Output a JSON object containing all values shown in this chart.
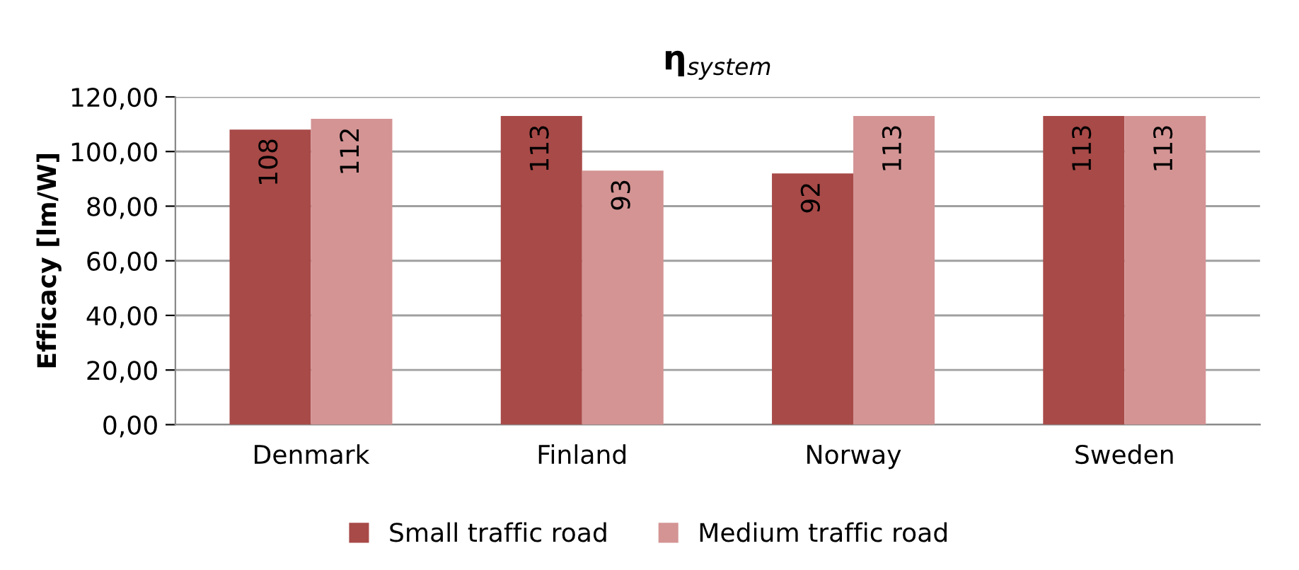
{
  "chart_data": {
    "type": "bar",
    "title": "η$_{system}$",
    "ylabel": "Efficacy [lm/W]",
    "categories": [
      "Denmark",
      "Finland",
      "Norway",
      "Sweden"
    ],
    "series": [
      {
        "name": "Small traffic road",
        "color": "#a84a48",
        "values": [
          108,
          113,
          92,
          113
        ]
      },
      {
        "name": "Medium traffic road",
        "color": "#d49494",
        "values": [
          112,
          93,
          113,
          113
        ]
      }
    ],
    "ylim": [
      0,
      120
    ],
    "yticks": [
      {
        "value": 0,
        "label": "0,00"
      },
      {
        "value": 20,
        "label": "20,00"
      },
      {
        "value": 40,
        "label": "40,00"
      },
      {
        "value": 60,
        "label": "60,00"
      },
      {
        "value": 80,
        "label": "80,00"
      },
      {
        "value": 100,
        "label": "100,00"
      },
      {
        "value": 120,
        "label": "120,00"
      }
    ],
    "grid": "y",
    "legend": "bottom",
    "data_labels": true
  }
}
